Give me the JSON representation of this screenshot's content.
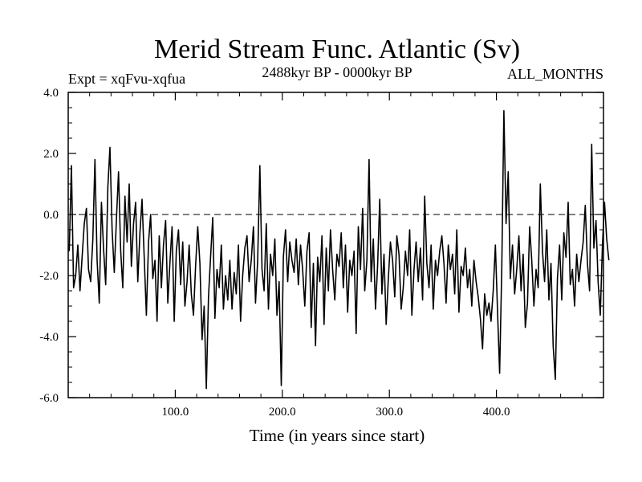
{
  "chart_data": {
    "type": "line",
    "title": "Merid Stream Func. Atlantic (Sv)",
    "annotations": {
      "left": "Expt = xqFvu-xqfua",
      "center": "2488kyr BP - 0000kyr BP",
      "right": "ALL_MONTHS"
    },
    "xlabel": "Time (in years since start)",
    "ylabel": "",
    "xlim": [
      0,
      500
    ],
    "ylim": [
      -6.0,
      4.0
    ],
    "xticks": [
      100,
      200,
      300,
      400
    ],
    "xtick_labels": [
      "100.0",
      "200.0",
      "300.0",
      "400.0"
    ],
    "yticks": [
      -6,
      -4,
      -2,
      0,
      2,
      4
    ],
    "ytick_labels": [
      "-6.0",
      "-4.0",
      "-2.0",
      "0.0",
      "2.0",
      "4.0"
    ],
    "reference_line": {
      "y": 0.0,
      "style": "dashed"
    },
    "series": [
      {
        "name": "Merid Stream Func. Atlantic",
        "x_start": 1,
        "x_step": 2,
        "values": [
          -1.2,
          1.6,
          -2.4,
          -2.0,
          -1.0,
          -2.5,
          -1.4,
          -0.3,
          0.2,
          -1.8,
          -2.2,
          -0.8,
          1.8,
          -1.5,
          -2.9,
          0.4,
          -1.1,
          -2.3,
          0.9,
          2.2,
          -0.5,
          -1.9,
          -0.2,
          1.4,
          -1.2,
          -2.4,
          0.6,
          -0.9,
          1.0,
          -1.7,
          -0.3,
          0.4,
          -2.2,
          -0.6,
          0.5,
          -1.4,
          -3.3,
          -0.9,
          0.0,
          -2.1,
          -1.5,
          -3.5,
          -0.7,
          -2.4,
          -1.0,
          -0.2,
          -2.9,
          -1.6,
          -0.4,
          -3.5,
          -1.2,
          -0.5,
          -2.3,
          -0.9,
          -3.0,
          -2.2,
          -1.0,
          -2.6,
          -3.3,
          -1.7,
          -0.4,
          -1.6,
          -4.1,
          -3.0,
          -5.7,
          -2.7,
          -1.4,
          -0.1,
          -3.4,
          -1.8,
          -2.4,
          -1.0,
          -3.1,
          -2.0,
          -2.8,
          -1.5,
          -3.1,
          -1.9,
          -2.6,
          -1.0,
          -3.5,
          -2.0,
          -1.1,
          -0.7,
          -2.2,
          -1.5,
          -0.4,
          -2.9,
          -1.5,
          1.6,
          -1.8,
          -2.5,
          -0.3,
          -3.1,
          -1.3,
          -2.0,
          -0.8,
          -3.3,
          -2.2,
          -5.6,
          -1.4,
          -0.5,
          -2.2,
          -0.9,
          -1.5,
          -1.9,
          -0.8,
          -2.3,
          -1.0,
          -1.8,
          -3.0,
          -1.2,
          -0.6,
          -3.7,
          -1.6,
          -4.3,
          -1.4,
          -2.2,
          -0.7,
          -3.6,
          -1.1,
          -2.5,
          -0.5,
          -1.8,
          -2.8,
          -1.3,
          -1.7,
          -0.6,
          -2.4,
          -1.0,
          -3.2,
          -1.5,
          -2.0,
          -1.2,
          -3.9,
          -0.4,
          -1.8,
          0.2,
          -2.5,
          -1.5,
          1.8,
          -2.2,
          -0.8,
          -3.1,
          -1.7,
          0.5,
          -2.6,
          -1.3,
          -3.6,
          -2.1,
          -0.9,
          -1.5,
          -2.7,
          -0.7,
          -1.3,
          -3.1,
          -2.4,
          -1.2,
          -2.0,
          -0.5,
          -3.3,
          -1.8,
          -0.9,
          -2.2,
          -1.1,
          -2.8,
          0.6,
          -1.6,
          -2.4,
          -1.0,
          -3.1,
          -1.5,
          -2.0,
          -1.2,
          -0.7,
          -1.6,
          -2.9,
          -1.0,
          -1.8,
          -1.3,
          -2.6,
          -0.5,
          -3.2,
          -1.7,
          -2.0,
          -1.1,
          -2.4,
          -1.8,
          -3.0,
          -1.5,
          -2.2,
          -2.7,
          -3.4,
          -4.4,
          -2.6,
          -3.3,
          -2.9,
          -3.5,
          -2.5,
          -1.0,
          -3.1,
          -5.2,
          -1.7,
          3.4,
          -0.3,
          1.4,
          -2.1,
          -1.0,
          -2.6,
          -1.8,
          -0.7,
          -2.5,
          -1.3,
          -3.7,
          -2.9,
          -0.4,
          -1.5,
          -3.0,
          -1.8,
          -2.4,
          1.0,
          -1.2,
          -2.2,
          -0.5,
          -2.8,
          -1.6,
          -4.3,
          -5.4,
          -2.1,
          -1.0,
          -2.8,
          -0.6,
          -1.4,
          0.4,
          -2.3,
          -1.8,
          -3.0,
          -1.3,
          -2.2,
          -1.5,
          -0.9,
          0.3,
          -1.6,
          -2.5,
          2.3,
          -1.1,
          -0.2,
          -2.2,
          -3.3,
          -1.0,
          0.4,
          -0.8,
          -1.5
        ]
      }
    ]
  }
}
